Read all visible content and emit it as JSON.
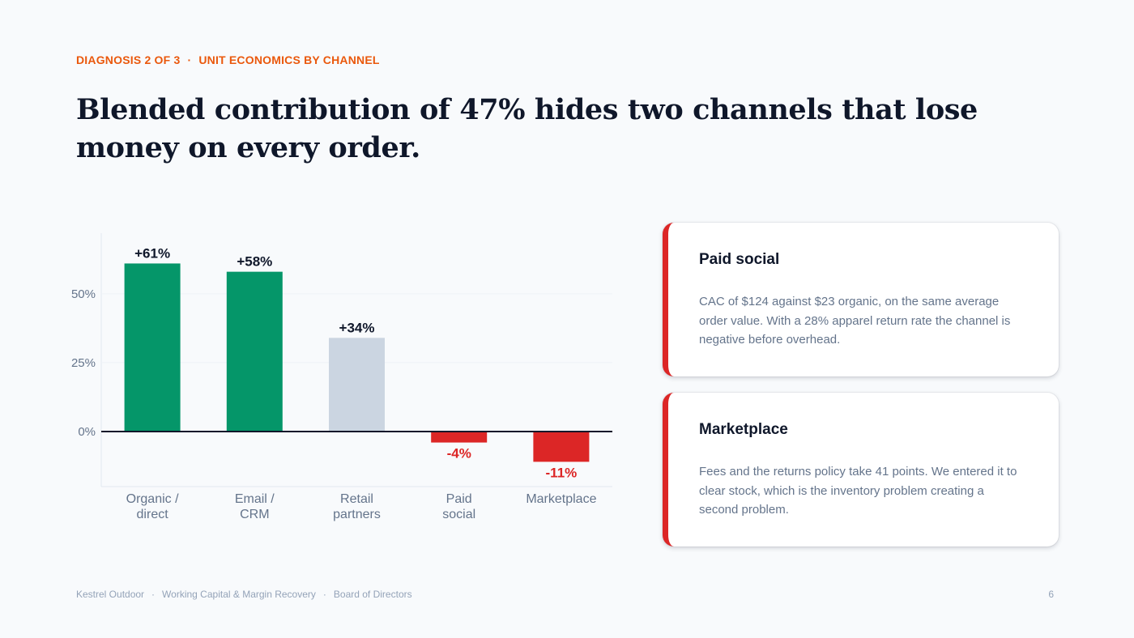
{
  "eyebrow": {
    "part1": "DIAGNOSIS 2 OF 3",
    "separator": "·",
    "part2": "UNIT ECONOMICS BY CHANNEL"
  },
  "title": "Blended contribution of 47% hides two channels that lose money on every order.",
  "chart_data": {
    "type": "bar",
    "categories": [
      [
        "Organic /",
        "direct"
      ],
      [
        "Email /",
        "CRM"
      ],
      [
        "Retail",
        "partners"
      ],
      [
        "Paid",
        "social"
      ],
      [
        "Marketplace"
      ]
    ],
    "values": [
      61,
      58,
      34,
      -4,
      -11
    ],
    "data_labels": [
      "+61%",
      "+58%",
      "+34%",
      "-4%",
      "-11%"
    ],
    "bar_colors": [
      "#059669",
      "#059669",
      "#cbd5e1",
      "#dc2626",
      "#dc2626"
    ],
    "label_colors": [
      "#0f172a",
      "#0f172a",
      "#0f172a",
      "#dc2626",
      "#dc2626"
    ],
    "yticks": [
      0,
      25,
      50
    ],
    "ytick_labels": [
      "0%",
      "25%",
      "50%"
    ],
    "ylim": [
      -20,
      72
    ],
    "grid": true,
    "title": "",
    "xlabel": "",
    "ylabel": ""
  },
  "cards": [
    {
      "title": "Paid social",
      "body": "CAC of $124 against $23 organic, on the same average order value. With a 28% apparel return rate the channel is negative before overhead."
    },
    {
      "title": "Marketplace",
      "body": "Fees and the returns policy take 41 points. We entered it to clear stock, which is the inventory problem creating a second problem."
    }
  ],
  "footer": {
    "company": "Kestrel Outdoor",
    "separator": "·",
    "project": "Working Capital & Margin Recovery",
    "audience": "Board of Directors",
    "page": "6"
  },
  "colors": {
    "accent": "#ea580c",
    "positive": "#059669",
    "negative": "#dc2626",
    "neutral": "#cbd5e1"
  }
}
